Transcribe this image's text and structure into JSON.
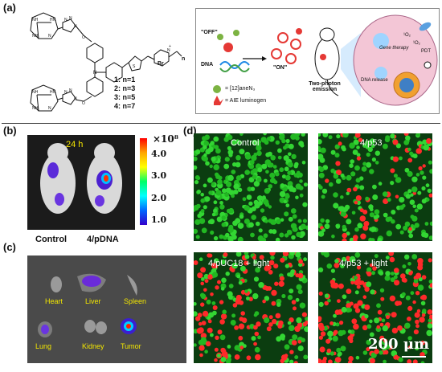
{
  "panels": {
    "a": {
      "label": "(a)",
      "compounds": [
        "1: n=1",
        "2: n=3",
        "3: n=5",
        "4: n=7"
      ],
      "br_label": "Br",
      "n_label": "n",
      "scheme": {
        "off_label": "\"OFF\"",
        "on_label": "\"ON\"",
        "dna_label": "DNA",
        "aneN3_label": "= [12]aneN₃",
        "aie_label": "= AIE luminogen",
        "two_photon_label": "Two-photon emission",
        "gene_therapy_label": "Gene therapy",
        "pdt_label": "PDT",
        "dna_release_label": "DNA release",
        "o2_label_1": "¹O₂",
        "o2_label_2": "¹O₂"
      }
    },
    "b": {
      "label": "(b)",
      "time_label": "24 h",
      "colorbar_exponent": "×10⁸",
      "colorbar_ticks": [
        "4.0",
        "3.0",
        "2.0",
        "1.0"
      ],
      "colorbar_colors": [
        "#ff0000",
        "#ffa500",
        "#ffff00",
        "#00ff66",
        "#00ffff",
        "#0066ff",
        "#3300cc"
      ],
      "captions": [
        "Control",
        "4/pDNA"
      ]
    },
    "c": {
      "label": "(c)",
      "organs": [
        "Heart",
        "Liver",
        "Spleen",
        "Lung",
        "Kidney",
        "Tumor"
      ]
    },
    "d": {
      "label": "(d)",
      "images": [
        "Control",
        "4/p53",
        "4/pUC18 + light",
        "4/p53 + light"
      ],
      "scale_bar": "200 μm"
    }
  }
}
